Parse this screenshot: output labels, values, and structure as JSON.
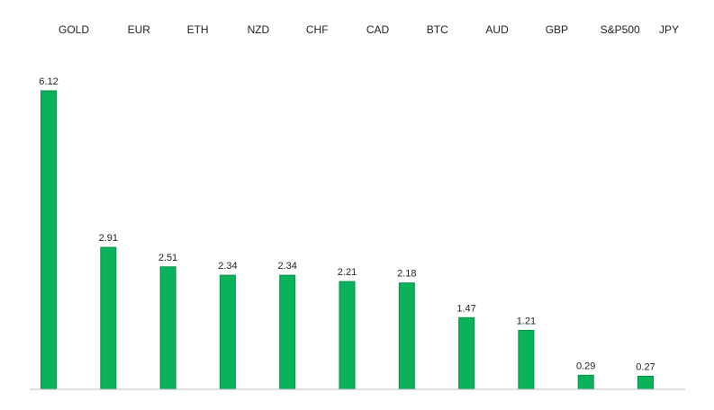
{
  "chart_data": {
    "type": "bar",
    "title": "",
    "xlabel": "",
    "ylabel": "",
    "categories": [
      "GOLD",
      "EUR",
      "ETH",
      "NZD",
      "CHF",
      "CAD",
      "BTC",
      "AUD",
      "GBP",
      "S&P500",
      "JPY"
    ],
    "values": [
      6.12,
      2.91,
      2.51,
      2.34,
      2.34,
      2.21,
      2.18,
      1.47,
      1.21,
      0.29,
      0.27
    ],
    "value_labels": [
      "6.12",
      "2.91",
      "2.51",
      "2.34",
      "2.34",
      "2.21",
      "2.18",
      "1.47",
      "1.21",
      "0.29",
      "0.27"
    ],
    "ylim": [
      0,
      6.12
    ],
    "category_label_position": "top",
    "grid": false,
    "legend": "none",
    "colors": {
      "bar_fill": "#0bb25c",
      "bar_edge": "#0a8f4a",
      "axis": "#bfbfbf",
      "text": "#222222"
    }
  }
}
